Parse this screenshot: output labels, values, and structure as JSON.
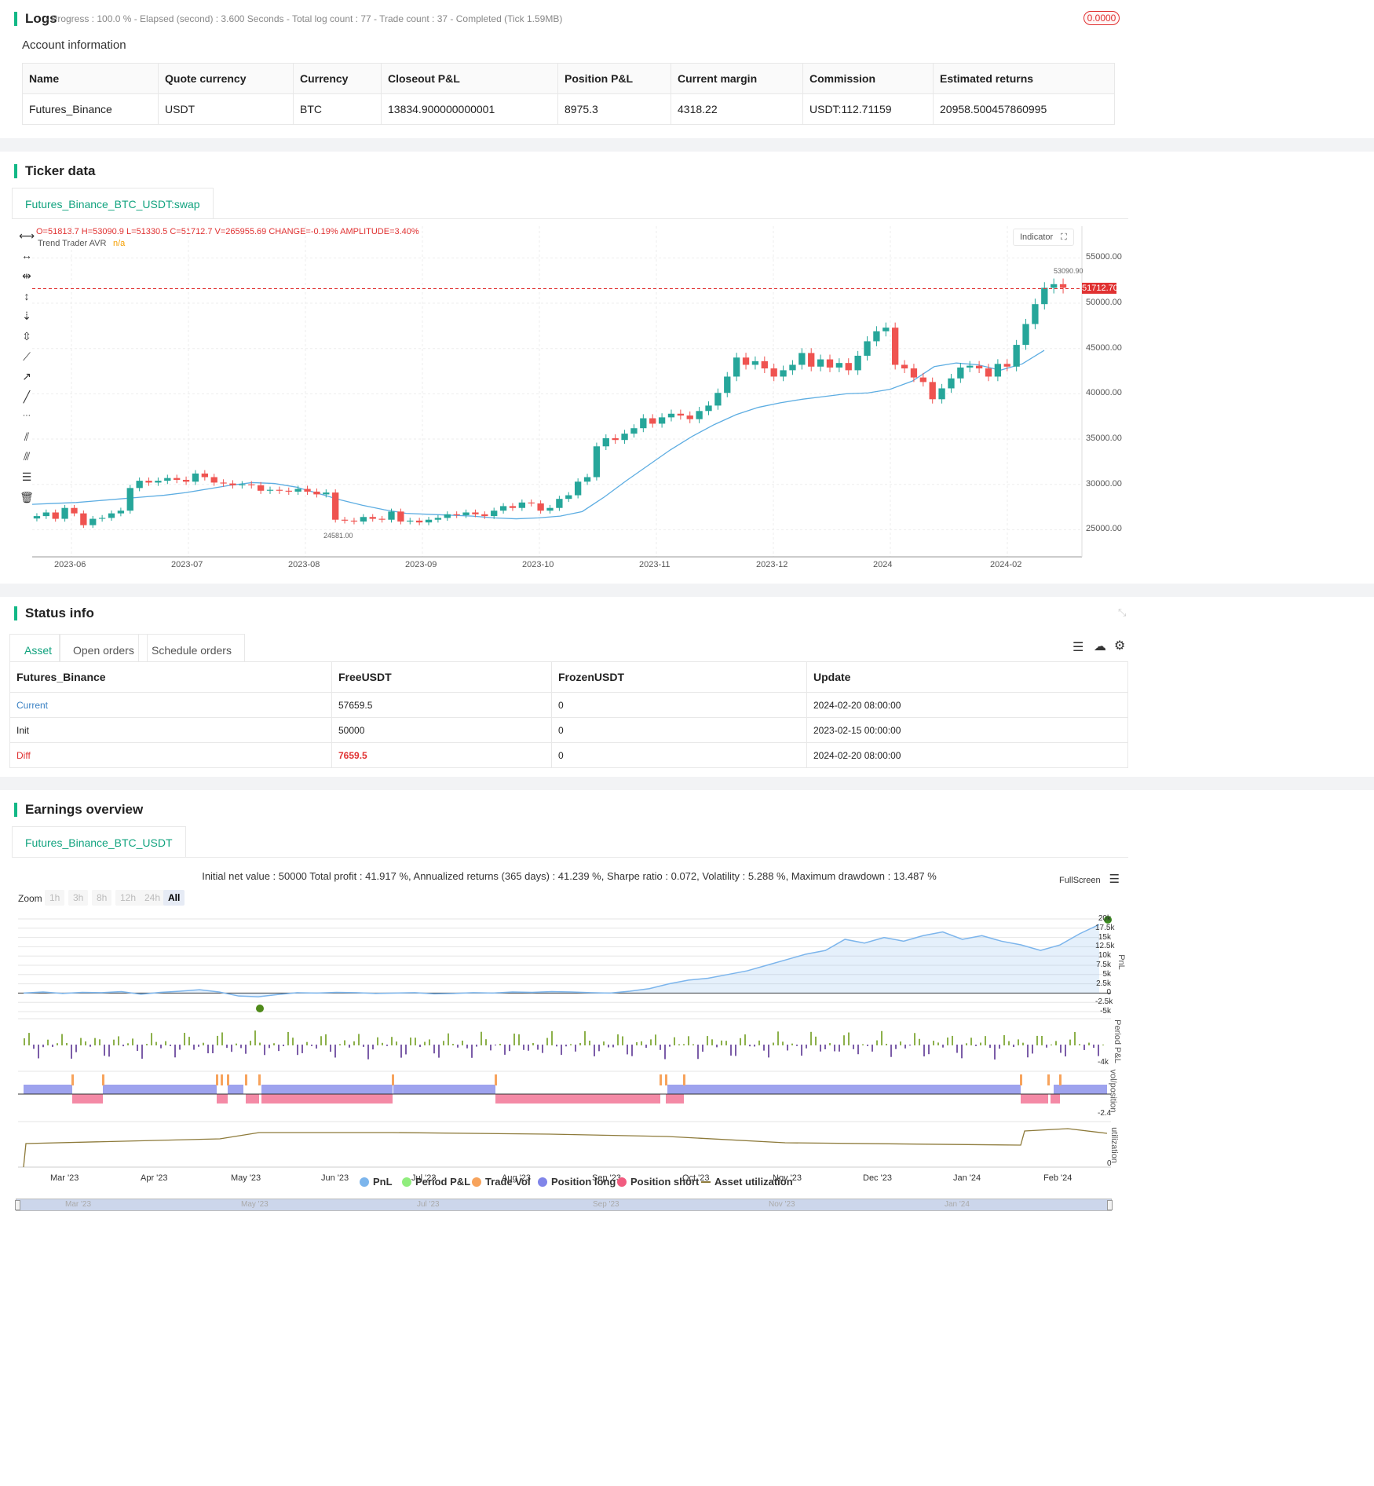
{
  "logs": {
    "title": "Logs",
    "status": "- Progress : 100.0 % - Elapsed (second) : 3.600  Seconds - Total log count : 77 - Trade count : 37 - Completed (Tick 1.59MB)",
    "badge": "0.0000"
  },
  "account": {
    "title": "Account information",
    "headers": [
      "Name",
      "Quote currency",
      "Currency",
      "Closeout P&L",
      "Position P&L",
      "Current margin",
      "Commission",
      "Estimated returns"
    ],
    "row": [
      "Futures_Binance",
      "USDT",
      "BTC",
      "13834.900000000001",
      "8975.3",
      "4318.22",
      "USDT:112.71159",
      "20958.500457860995"
    ]
  },
  "ticker": {
    "title": "Ticker data",
    "tab": "Futures_Binance_BTC_USDT:swap",
    "ohlc": "O=51813.7 H=53090.9 L=51330.5 C=51712.7 V=265955.69 CHANGE=-0.19% AMPLITUDE=3.40%",
    "indicator_name": "Trend Trader AVR",
    "indicator_value": "n/a",
    "indicator_button": "Indicator",
    "last_price": "51712.70",
    "high_label": "53090.90",
    "low_label": "24581.00",
    "y_ticks": [
      "55000.00",
      "50000.00",
      "45000.00",
      "40000.00",
      "35000.00",
      "30000.00",
      "25000.00"
    ],
    "x_ticks": [
      "2023-06",
      "2023-07",
      "2023-08",
      "2023-09",
      "2023-10",
      "2023-11",
      "2023-12",
      "2024",
      "2024-02"
    ]
  },
  "chart_data": {
    "type": "candlestick",
    "title": "",
    "ylim": [
      22000,
      58500
    ],
    "trend_line_color": "#5dade2",
    "up_color": "#26a69a",
    "down_color": "#ef5350",
    "close_series": [
      26500,
      26900,
      26200,
      27400,
      26800,
      25500,
      26200,
      26300,
      26800,
      27100,
      29600,
      30400,
      30200,
      30400,
      30700,
      30500,
      30300,
      31200,
      30800,
      30200,
      30100,
      29900,
      30000,
      29900,
      29300,
      29400,
      29300,
      29200,
      29500,
      29200,
      28900,
      29100,
      26100,
      26000,
      25900,
      26400,
      26200,
      26100,
      27000,
      25900,
      26000,
      25800,
      26100,
      26300,
      26700,
      26600,
      26900,
      26700,
      26500,
      27100,
      27600,
      27400,
      28000,
      27900,
      27100,
      27400,
      28400,
      28800,
      30300,
      30800,
      34200,
      35100,
      34900,
      35600,
      36200,
      37300,
      36700,
      37400,
      37800,
      37600,
      37200,
      38100,
      38700,
      40100,
      41900,
      44000,
      43200,
      43600,
      42800,
      41900,
      42600,
      43200,
      44500,
      43000,
      43800,
      42900,
      43400,
      42600,
      44200,
      45800,
      46900,
      47300,
      43200,
      42800,
      41800,
      41300,
      39400,
      40600,
      41700,
      42900,
      43100,
      42800,
      41900,
      43300,
      43000,
      45400,
      47700,
      49900,
      51700,
      52100,
      51700
    ],
    "trend_series": [
      27800,
      27900,
      28000,
      28200,
      28400,
      28600,
      28800,
      29100,
      29500,
      29900,
      30200,
      30100,
      29700,
      29000,
      28300,
      27700,
      27200,
      26800,
      26700,
      26600,
      26500,
      26300,
      26200,
      26300,
      26500,
      27000,
      28600,
      30400,
      32100,
      33800,
      35300,
      36600,
      37700,
      38500,
      39000,
      39400,
      39700,
      40000,
      40100,
      40500,
      41400,
      43000,
      43400,
      43200,
      42600,
      43300,
      44800
    ]
  },
  "status": {
    "title": "Status info",
    "tabs": [
      "Asset",
      "Open orders",
      "Schedule orders"
    ],
    "headers": [
      "Futures_Binance",
      "FreeUSDT",
      "FrozenUSDT",
      "Update"
    ],
    "rows": [
      [
        "Current",
        "57659.5",
        "0",
        "2024-02-20 08:00:00"
      ],
      [
        "Init",
        "50000",
        "0",
        "2023-02-15 00:00:00"
      ],
      [
        "Diff",
        "7659.5",
        "0",
        "2024-02-20 08:00:00"
      ]
    ]
  },
  "earnings": {
    "title": "Earnings overview",
    "tab": "Futures_Binance_BTC_USDT",
    "summary": "Initial net value : 50000 Total profit : 41.917 %, Annualized returns (365 days) : 41.239 %, Sharpe ratio : 0.072, Volatility : 5.288 %, Maximum drawdown : 13.487 %",
    "fullscreen": "FullScreen",
    "zoom_label": "Zoom",
    "zoom_buttons": [
      "1h",
      "3h",
      "8h",
      "12h",
      "24h",
      "All"
    ],
    "pnl_ticks": [
      "20k",
      "17.5k",
      "15k",
      "12.5k",
      "10k",
      "7.5k",
      "5k",
      "2.5k",
      "0",
      "-2.5k",
      "-5k"
    ],
    "axis_labels": [
      "PnL",
      "Period P&L",
      "vol/position",
      "utilization"
    ],
    "period_tick": "-4k",
    "pos_tick": "-2.4",
    "util_tick": "0",
    "months": [
      "Mar '23",
      "Apr '23",
      "May '23",
      "Jun '23",
      "Jul '23",
      "Aug '23",
      "Sep '23",
      "Oct '23",
      "Nov '23",
      "Dec '23",
      "Jan '24",
      "Feb '24"
    ],
    "nav_months": [
      "Mar '23",
      "May '23",
      "Jul '23",
      "Sep '23",
      "Nov '23",
      "Jan '24"
    ],
    "legend": [
      {
        "label": "PnL",
        "color": "#7cb5ec"
      },
      {
        "label": "Period P&L",
        "color": "#90ed7d"
      },
      {
        "label": "Trade Vol",
        "color": "#f7a35c"
      },
      {
        "label": "Position long",
        "color": "#8085e9"
      },
      {
        "label": "Position short",
        "color": "#f15c80"
      },
      {
        "label": "Asset utilization",
        "color": "#8d7a3a"
      }
    ]
  }
}
